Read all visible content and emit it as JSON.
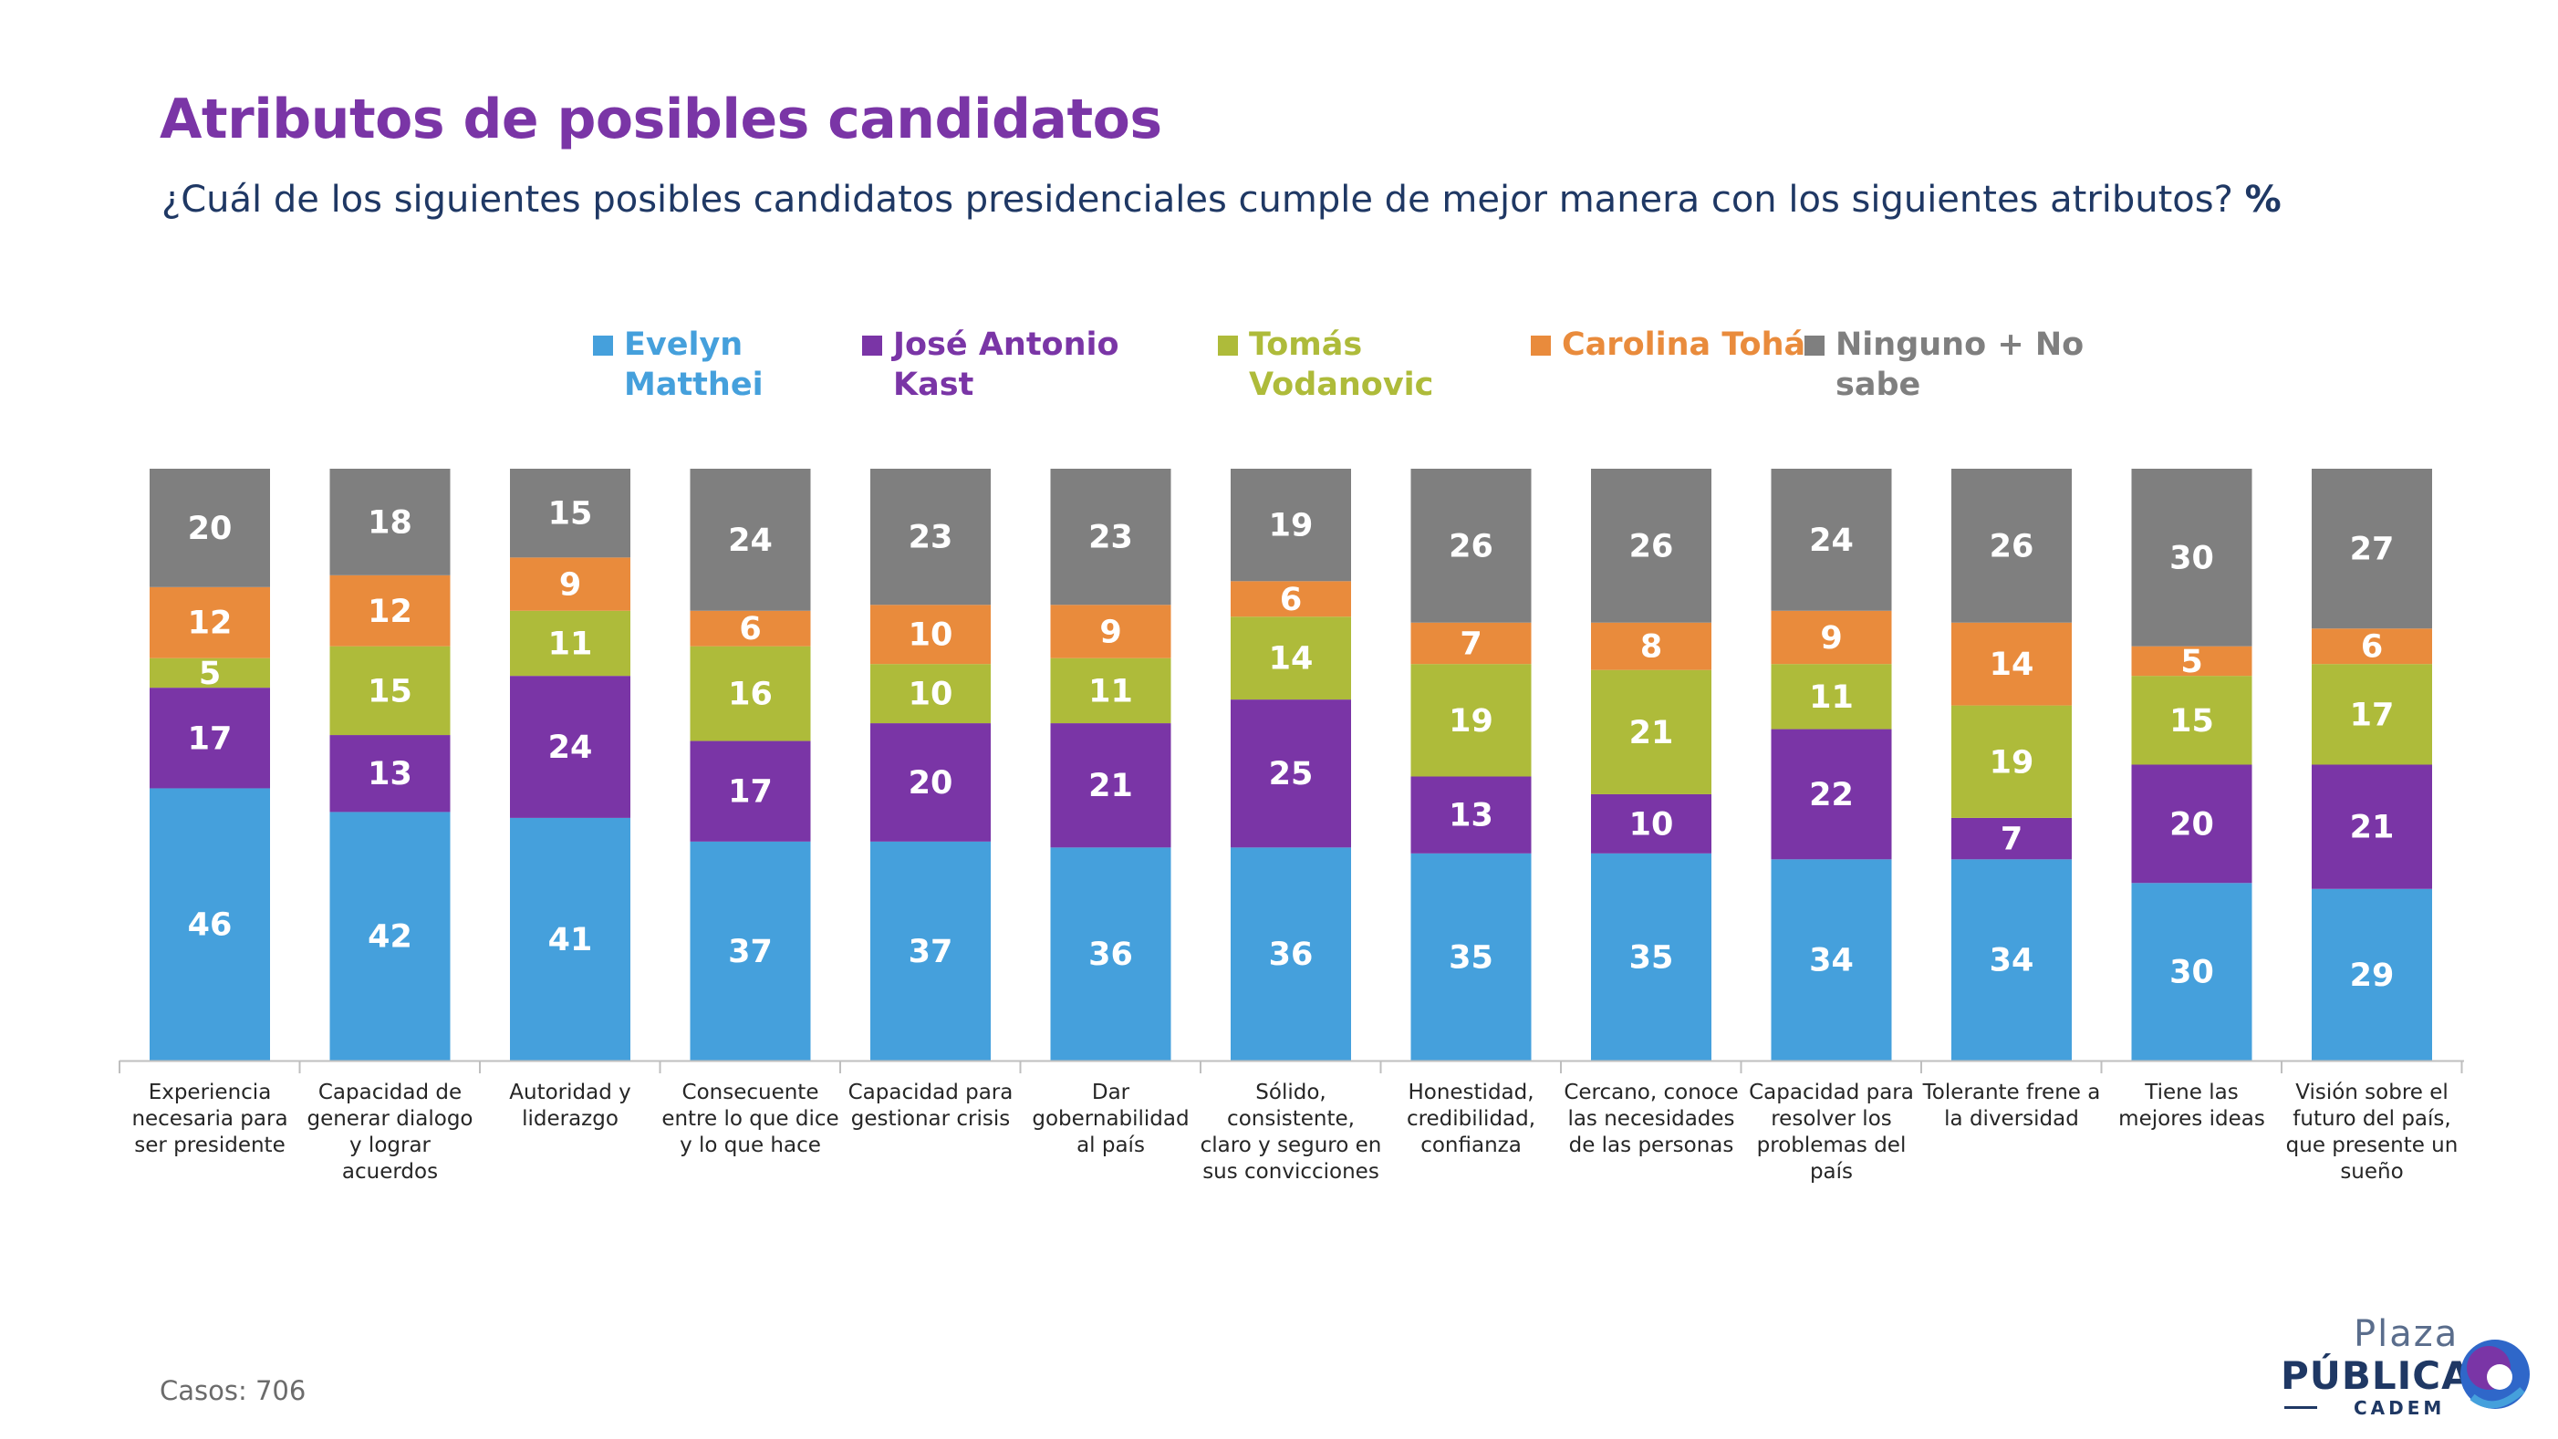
{
  "header": {
    "title": "Atributos de posibles candidatos",
    "subtitle": "¿Cuál de los siguientes posibles candidatos presidenciales cumple de mejor manera con los siguientes atributos?",
    "subtitle_suffix": "%"
  },
  "legend": [
    {
      "name": "Evelyn Matthei",
      "color": "#45a0dc"
    },
    {
      "name": "José Antonio Kast",
      "color": "#7a35a6"
    },
    {
      "name": "Tomás Vodanovic",
      "color": "#aebb3a"
    },
    {
      "name": "Carolina Tohá",
      "color": "#e98b3c"
    },
    {
      "name": "Ninguno + No sabe",
      "color": "#7f7f7f"
    }
  ],
  "chart_data": {
    "type": "bar",
    "stacked": true,
    "unit": "%",
    "categories": [
      "Experiencia necesaria para ser presidente",
      "Capacidad de generar dialogo y lograr acuerdos",
      "Autoridad y liderazgo",
      "Consecuente entre lo que dice y lo que hace",
      "Capacidad para gestionar crisis",
      "Dar gobernabilidad al país",
      "Sólido, consistente, claro y seguro en sus convicciones",
      "Honestidad, credibilidad, confianza",
      "Cercano, conoce las necesidades de las personas",
      "Capacidad para resolver los problemas del país",
      "Tolerante frene a la diversidad",
      "Tiene las mejores ideas",
      "Visión sobre el futuro del país, que presente un sueño"
    ],
    "category_lines": [
      [
        "Experiencia",
        "necesaria para",
        "ser presidente"
      ],
      [
        "Capacidad de",
        "generar dialogo",
        "y lograr",
        "acuerdos"
      ],
      [
        "Autoridad y",
        "liderazgo"
      ],
      [
        "Consecuente",
        "entre lo que dice",
        "y lo que hace"
      ],
      [
        "Capacidad para",
        "gestionar crisis"
      ],
      [
        "Dar",
        "gobernabilidad",
        "al país"
      ],
      [
        "Sólido,",
        "consistente,",
        "claro y seguro en",
        "sus convicciones"
      ],
      [
        "Honestidad,",
        "credibilidad,",
        "confianza"
      ],
      [
        "Cercano, conoce",
        "las necesidades",
        "de las personas"
      ],
      [
        "Capacidad para",
        "resolver los",
        "problemas del",
        "país"
      ],
      [
        "Tolerante frene a",
        "la diversidad"
      ],
      [
        "Tiene las",
        "mejores ideas"
      ],
      [
        "Visión sobre el",
        "futuro del país,",
        "que presente un",
        "sueño"
      ]
    ],
    "series": [
      {
        "name": "Evelyn Matthei",
        "color": "#45a0dc",
        "values": [
          46,
          42,
          41,
          37,
          37,
          36,
          36,
          35,
          35,
          34,
          34,
          30,
          29
        ]
      },
      {
        "name": "José Antonio Kast",
        "color": "#7a35a6",
        "values": [
          17,
          13,
          24,
          17,
          20,
          21,
          25,
          13,
          10,
          22,
          7,
          20,
          21
        ]
      },
      {
        "name": "Tomás Vodanovic",
        "color": "#aebb3a",
        "values": [
          5,
          15,
          11,
          16,
          10,
          11,
          14,
          19,
          21,
          11,
          19,
          15,
          17
        ]
      },
      {
        "name": "Carolina Tohá",
        "color": "#e98b3c",
        "values": [
          12,
          12,
          9,
          6,
          10,
          9,
          6,
          7,
          8,
          9,
          14,
          5,
          6
        ]
      },
      {
        "name": "Ninguno + No sabe",
        "color": "#7f7f7f",
        "values": [
          20,
          18,
          15,
          24,
          23,
          23,
          19,
          26,
          26,
          24,
          26,
          30,
          27
        ]
      }
    ],
    "ylim": [
      0,
      100
    ],
    "grid": false,
    "legend_position": "top"
  },
  "footer": {
    "cases": "Casos: 706",
    "brand_top": "Plaza",
    "brand_main": "PÚBLICA",
    "brand_sub": "CADEM"
  }
}
